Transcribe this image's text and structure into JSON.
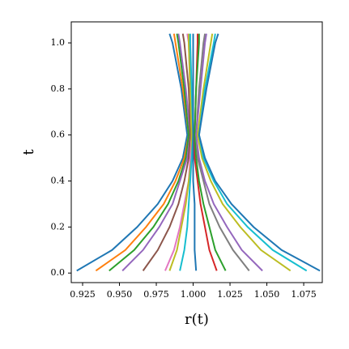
{
  "chart_data": {
    "type": "line",
    "x_label": "r(t)",
    "y_label": "t",
    "y": [
      0.01,
      0.1,
      0.2,
      0.3,
      0.4,
      0.5,
      0.6,
      0.8,
      1.0,
      1.04
    ],
    "series": [
      {
        "color": "#1f77b4",
        "values": [
          0.921,
          0.945,
          0.962,
          0.976,
          0.986,
          0.993,
          0.996,
          0.992,
          0.986,
          0.984
        ]
      },
      {
        "color": "#ff7f0e",
        "values": [
          0.934,
          0.954,
          0.968,
          0.98,
          0.988,
          0.994,
          0.997,
          0.993,
          0.988,
          0.987
        ]
      },
      {
        "color": "#2ca02c",
        "values": [
          0.943,
          0.96,
          0.973,
          0.983,
          0.99,
          0.995,
          0.997,
          0.994,
          0.99,
          0.989
        ]
      },
      {
        "color": "#9467bd",
        "values": [
          0.952,
          0.966,
          0.977,
          0.986,
          0.991,
          0.996,
          0.998,
          0.995,
          0.991,
          0.99
        ]
      },
      {
        "color": "#8c564b",
        "values": [
          0.966,
          0.976,
          0.984,
          0.99,
          0.994,
          0.997,
          0.998,
          0.997,
          0.994,
          0.993
        ]
      },
      {
        "color": "#e377c2",
        "values": [
          0.981,
          0.987,
          0.991,
          0.994,
          0.997,
          0.998,
          0.999,
          0.998,
          0.997,
          0.996
        ]
      },
      {
        "color": "#bcbd22",
        "values": [
          0.984,
          0.989,
          0.992,
          0.995,
          0.997,
          0.999,
          0.999,
          0.998,
          0.997,
          0.997
        ]
      },
      {
        "color": "#17becf",
        "values": [
          0.991,
          0.994,
          0.996,
          0.997,
          0.998,
          0.999,
          1.0,
          0.999,
          0.998,
          0.998
        ]
      },
      {
        "color": "#1f77b4",
        "values": [
          1.002,
          1.001,
          1.001,
          1.001,
          1.0,
          1.0,
          1.0,
          1.0,
          1.0,
          1.0
        ]
      },
      {
        "color": "#d62728",
        "values": [
          1.016,
          1.011,
          1.008,
          1.005,
          1.003,
          1.001,
          1.001,
          1.002,
          1.003,
          1.003
        ]
      },
      {
        "color": "#2ca02c",
        "values": [
          1.022,
          1.015,
          1.011,
          1.007,
          1.004,
          1.002,
          1.001,
          1.002,
          1.004,
          1.004
        ]
      },
      {
        "color": "#7f7f7f",
        "values": [
          1.038,
          1.027,
          1.018,
          1.011,
          1.007,
          1.003,
          1.002,
          1.004,
          1.007,
          1.008
        ]
      },
      {
        "color": "#9467bd",
        "values": [
          1.047,
          1.033,
          1.023,
          1.014,
          1.008,
          1.004,
          1.002,
          1.005,
          1.008,
          1.009
        ]
      },
      {
        "color": "#bcbd22",
        "values": [
          1.066,
          1.046,
          1.032,
          1.02,
          1.012,
          1.006,
          1.003,
          1.007,
          1.012,
          1.013
        ]
      },
      {
        "color": "#17becf",
        "values": [
          1.077,
          1.054,
          1.037,
          1.023,
          1.014,
          1.007,
          1.004,
          1.008,
          1.014,
          1.015
        ]
      },
      {
        "color": "#1f77b4",
        "values": [
          1.086,
          1.06,
          1.041,
          1.026,
          1.015,
          1.008,
          1.004,
          1.009,
          1.015,
          1.017
        ]
      }
    ],
    "xlim": [
      0.9173,
      1.0876
    ],
    "ylim": [
      -0.0415,
      1.0915
    ],
    "xticks": [
      0.925,
      {
        "value": 0.95,
        "label": "0.950"
      },
      0.975,
      {
        "value": 1,
        "label": "1.000"
      },
      1.025,
      {
        "value": 1.05,
        "label": "1.050"
      },
      1.075
    ],
    "yticks": [
      {
        "value": 0,
        "label": "0.0"
      },
      0.2,
      0.4,
      0.6,
      0.8,
      {
        "value": 1,
        "label": "1.0"
      }
    ]
  }
}
